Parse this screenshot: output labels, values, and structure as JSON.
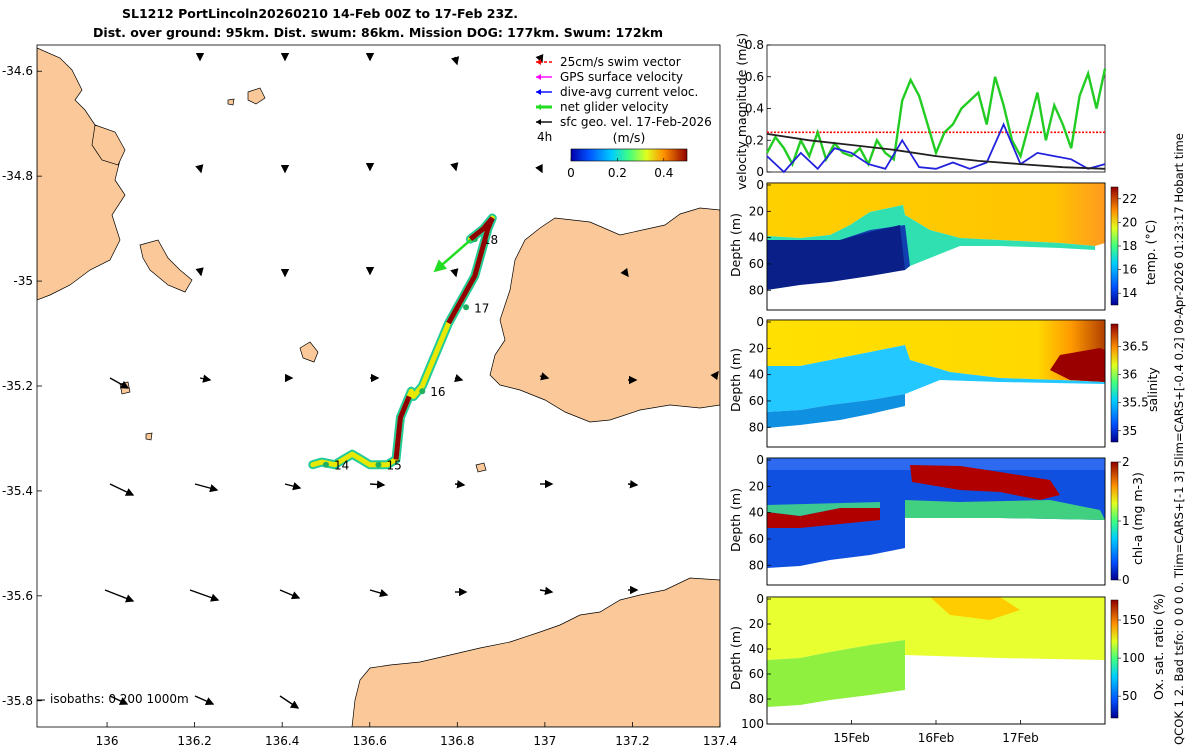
{
  "title": {
    "line1": "SL1212 PortLincoln20260210 14-Feb 00Z to 17-Feb 23Z.",
    "line2": "Dist. over ground: 95km. Dist. swum: 86km. Mission DOG: 177km. Swum: 172km"
  },
  "side_note": "QCOK 1  2. Bad tsfo: 0  0  0  0. Tlim=CARS+[-1 3] Slim=CARS+[-0.4 0.2] 09-Apr-2026 01:23:17 Hobart time",
  "colors": {
    "land": "#fbc999",
    "swim_vector": "#ff0000",
    "gps_velocity": "#ff00ff",
    "current": "#0000ff",
    "net_velocity": "#22dd22",
    "geo_vel": "#000000"
  },
  "chart_data": [
    {
      "type": "map",
      "xlim": [
        135.84,
        137.4
      ],
      "ylim": [
        -35.85,
        -34.55
      ],
      "x_ticks": [
        136,
        136.2,
        136.4,
        136.6,
        136.8,
        137,
        137.2,
        137.4
      ],
      "x_tick_labels": [
        "136",
        "136.2",
        "136.4",
        "136.6",
        "136.8",
        "137",
        "137.2",
        "137.4"
      ],
      "y_ticks": [
        -34.6,
        -34.8,
        -35,
        -35.2,
        -35.4,
        -35.6,
        -35.8
      ],
      "y_tick_labels": [
        "-34.6",
        "-34.8",
        "-35",
        "-35.2",
        "-35.4",
        "-35.6",
        "-35.8"
      ],
      "isobaths_label": "isobaths: 0  200  1000m",
      "legend": [
        {
          "label": "25cm/s swim vector",
          "color": "#ff0000"
        },
        {
          "label": "GPS surface velocity",
          "color": "#ff00ff"
        },
        {
          "label": "dive-avg current veloc.",
          "color": "#0000ff"
        },
        {
          "label": "net glider velocity",
          "color": "#22dd22"
        },
        {
          "label": "sfc geo. vel. 17-Feb-2026",
          "color": "#000000"
        }
      ],
      "interval_label": "4h",
      "colorbar": {
        "label": "(m/s)",
        "min": 0,
        "max": 0.5,
        "ticks": [
          0,
          0.2,
          0.4
        ],
        "tick_labels": [
          "0",
          "0.2",
          "0.4"
        ]
      },
      "track": [
        [
          136.47,
          -35.35
        ],
        [
          136.49,
          -35.345
        ],
        [
          136.52,
          -35.35
        ],
        [
          136.54,
          -35.34
        ],
        [
          136.56,
          -35.33
        ],
        [
          136.58,
          -35.34
        ],
        [
          136.6,
          -35.35
        ],
        [
          136.62,
          -35.35
        ],
        [
          136.64,
          -35.35
        ],
        [
          136.66,
          -35.34
        ],
        [
          136.665,
          -35.3
        ],
        [
          136.67,
          -35.26
        ],
        [
          136.69,
          -35.22
        ],
        [
          136.695,
          -35.21
        ],
        [
          136.7,
          -35.22
        ],
        [
          136.72,
          -35.2
        ],
        [
          136.74,
          -35.16
        ],
        [
          136.76,
          -35.12
        ],
        [
          136.78,
          -35.08
        ],
        [
          136.8,
          -35.05
        ],
        [
          136.82,
          -35.02
        ],
        [
          136.84,
          -34.99
        ],
        [
          136.85,
          -34.96
        ],
        [
          136.86,
          -34.93
        ],
        [
          136.87,
          -34.9
        ],
        [
          136.88,
          -34.88
        ],
        [
          136.86,
          -34.9
        ],
        [
          136.83,
          -34.92
        ]
      ],
      "day_markers": [
        {
          "label": "14",
          "lon": 136.5,
          "lat": -35.35
        },
        {
          "label": "15",
          "lon": 136.62,
          "lat": -35.35
        },
        {
          "label": "16",
          "lon": 136.72,
          "lat": -35.21
        },
        {
          "label": "17",
          "lon": 136.82,
          "lat": -35.05
        },
        {
          "label": "18",
          "lon": 136.84,
          "lat": -34.92
        }
      ],
      "net_velocity_arrow": {
        "from": [
          136.86,
          -34.9
        ],
        "to": [
          136.75,
          -34.98
        ]
      }
    },
    {
      "type": "line",
      "ylabel": "velocity magnitude (m/s)",
      "xlim": [
        14,
        18
      ],
      "ylim": [
        0,
        0.8
      ],
      "y_ticks": [
        0,
        0.2,
        0.4,
        0.6,
        0.8
      ],
      "y_tick_labels": [
        "0",
        "0.2",
        "0.4",
        "0.6",
        "0.8"
      ],
      "series": [
        {
          "name": "swim speed (red dashed)",
          "color": "#ff0000",
          "x": [
            14,
            18
          ],
          "y": [
            0.25,
            0.25
          ]
        },
        {
          "name": "net glider velocity",
          "color": "#22cc22",
          "x": [
            14,
            14.1,
            14.2,
            14.3,
            14.4,
            14.5,
            14.6,
            14.7,
            14.8,
            14.9,
            15.0,
            15.1,
            15.2,
            15.3,
            15.4,
            15.5,
            15.6,
            15.7,
            15.8,
            15.9,
            16.0,
            16.1,
            16.2,
            16.3,
            16.4,
            16.5,
            16.6,
            16.7,
            16.8,
            16.9,
            17.0,
            17.1,
            17.2,
            17.3,
            17.4,
            17.5,
            17.6,
            17.7,
            17.8,
            17.9,
            18.0
          ],
          "y": [
            0.12,
            0.22,
            0.15,
            0.05,
            0.2,
            0.1,
            0.25,
            0.08,
            0.18,
            0.12,
            0.1,
            0.15,
            0.05,
            0.2,
            0.12,
            0.08,
            0.45,
            0.58,
            0.48,
            0.3,
            0.12,
            0.25,
            0.3,
            0.4,
            0.45,
            0.5,
            0.3,
            0.6,
            0.42,
            0.2,
            0.1,
            0.3,
            0.5,
            0.2,
            0.42,
            0.3,
            0.15,
            0.48,
            0.62,
            0.4,
            0.65
          ]
        },
        {
          "name": "dive-avg current",
          "color": "#2222dd",
          "x": [
            14,
            14.2,
            14.4,
            14.6,
            14.8,
            15.0,
            15.2,
            15.4,
            15.6,
            15.8,
            16.0,
            16.2,
            16.4,
            16.6,
            16.8,
            17.0,
            17.2,
            17.4,
            17.6,
            17.8,
            18.0
          ],
          "y": [
            0.1,
            0.0,
            0.12,
            0.02,
            0.15,
            0.12,
            0.05,
            0.02,
            0.2,
            0.03,
            0.02,
            0.06,
            0.02,
            0.06,
            0.3,
            0.05,
            0.12,
            0.1,
            0.08,
            0.02,
            0.05
          ]
        },
        {
          "name": "sfc geostrophic",
          "color": "#222222",
          "x": [
            14,
            14.5,
            15,
            15.5,
            16,
            16.5,
            17,
            17.5,
            18
          ],
          "y": [
            0.24,
            0.2,
            0.17,
            0.14,
            0.1,
            0.07,
            0.05,
            0.03,
            0.02
          ]
        }
      ]
    },
    {
      "type": "heatmap",
      "variable": "temperature",
      "ylabel": "Depth (m)",
      "cbar_label": "temp. (°C)",
      "y_ticks": [
        0,
        20,
        40,
        60,
        80
      ],
      "y_tick_labels": [
        "0",
        "20",
        "40",
        "60",
        "80"
      ],
      "cbar_ticks": [
        14,
        16,
        18,
        20,
        22
      ],
      "cbar_tick_labels": [
        "14",
        "16",
        "18",
        "20",
        "22"
      ],
      "clim": [
        13,
        23
      ]
    },
    {
      "type": "heatmap",
      "variable": "salinity",
      "ylabel": "Depth (m)",
      "cbar_label": "salinity",
      "y_ticks": [
        0,
        20,
        40,
        60,
        80
      ],
      "y_tick_labels": [
        "0",
        "20",
        "40",
        "60",
        "80"
      ],
      "cbar_ticks": [
        35,
        35.5,
        36,
        36.5
      ],
      "cbar_tick_labels": [
        "35",
        "35.5",
        "36",
        "36.5"
      ],
      "clim": [
        34.8,
        36.9
      ]
    },
    {
      "type": "heatmap",
      "variable": "chl-a",
      "ylabel": "Depth (m)",
      "cbar_label": "chl-a (mg m-3)",
      "y_ticks": [
        0,
        20,
        40,
        60,
        80
      ],
      "y_tick_labels": [
        "0",
        "20",
        "40",
        "60",
        "80"
      ],
      "cbar_ticks": [
        0,
        1,
        2
      ],
      "cbar_tick_labels": [
        "0",
        "1",
        "2"
      ],
      "clim": [
        0,
        2
      ]
    },
    {
      "type": "heatmap",
      "variable": "oxygen saturation",
      "ylabel": "Depth (m)",
      "cbar_label": "Ox. sat. ratio (%)",
      "y_ticks": [
        0,
        20,
        40,
        60,
        80,
        100
      ],
      "y_tick_labels": [
        "0",
        "20",
        "40",
        "60",
        "80",
        "100"
      ],
      "cbar_ticks": [
        50,
        100,
        150
      ],
      "cbar_tick_labels": [
        "50",
        "100",
        "150"
      ],
      "clim": [
        20,
        175
      ],
      "x_ticks": [
        15,
        16,
        17
      ],
      "x_tick_labels": [
        "15Feb",
        "16Feb",
        "17Feb"
      ]
    }
  ]
}
